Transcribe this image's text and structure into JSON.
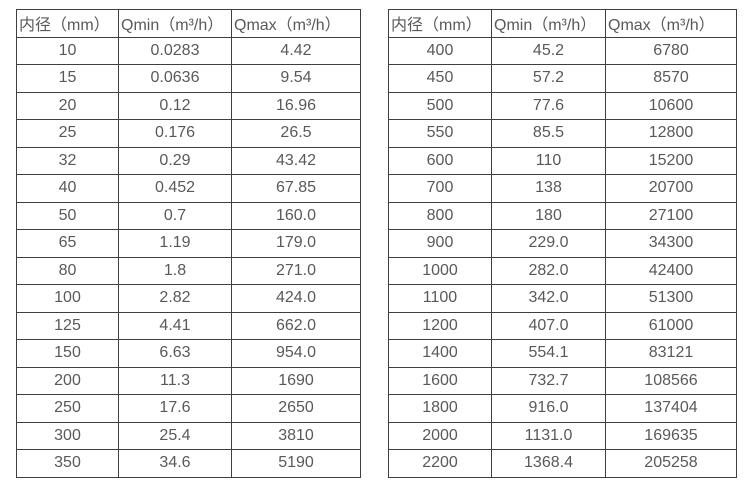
{
  "colors": {
    "background": "#ffffff",
    "border": "#3f3f3f",
    "text": "#595959"
  },
  "tables": [
    {
      "name": "flow-table-small-diameters",
      "headers": [
        "内径（mm）",
        "Qmin（m³/h）",
        "Qmax（m³/h）"
      ],
      "rows": [
        [
          "10",
          "0.0283",
          "4.42"
        ],
        [
          "15",
          "0.0636",
          "9.54"
        ],
        [
          "20",
          "0.12",
          "16.96"
        ],
        [
          "25",
          "0.176",
          "26.5"
        ],
        [
          "32",
          "0.29",
          "43.42"
        ],
        [
          "40",
          "0.452",
          "67.85"
        ],
        [
          "50",
          "0.7",
          "160.0"
        ],
        [
          "65",
          "1.19",
          "179.0"
        ],
        [
          "80",
          "1.8",
          "271.0"
        ],
        [
          "100",
          "2.82",
          "424.0"
        ],
        [
          "125",
          "4.41",
          "662.0"
        ],
        [
          "150",
          "6.63",
          "954.0"
        ],
        [
          "200",
          "11.3",
          "1690"
        ],
        [
          "250",
          "17.6",
          "2650"
        ],
        [
          "300",
          "25.4",
          "3810"
        ],
        [
          "350",
          "34.6",
          "5190"
        ]
      ]
    },
    {
      "name": "flow-table-large-diameters",
      "headers": [
        "内径（mm）",
        "Qmin（m³/h）",
        "Qmax（m³/h）"
      ],
      "rows": [
        [
          "400",
          "45.2",
          "6780"
        ],
        [
          "450",
          "57.2",
          "8570"
        ],
        [
          "500",
          "77.6",
          "10600"
        ],
        [
          "550",
          "85.5",
          "12800"
        ],
        [
          "600",
          "110",
          "15200"
        ],
        [
          "700",
          "138",
          "20700"
        ],
        [
          "800",
          "180",
          "27100"
        ],
        [
          "900",
          "229.0",
          "34300"
        ],
        [
          "1000",
          "282.0",
          "42400"
        ],
        [
          "1100",
          "342.0",
          "51300"
        ],
        [
          "1200",
          "407.0",
          "61000"
        ],
        [
          "1400",
          "554.1",
          "83121"
        ],
        [
          "1600",
          "732.7",
          "108566"
        ],
        [
          "1800",
          "916.0",
          "137404"
        ],
        [
          "2000",
          "1131.0",
          "169635"
        ],
        [
          "2200",
          "1368.4",
          "205258"
        ]
      ]
    }
  ]
}
